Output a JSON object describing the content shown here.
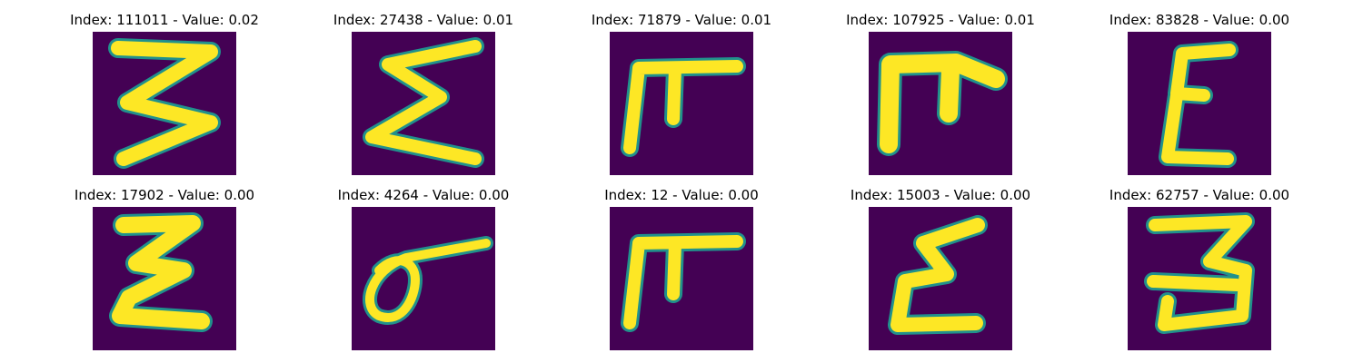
{
  "colors": {
    "background": "#440154",
    "edge": "#21918c",
    "stroke": "#fde725"
  },
  "panels": [
    {
      "title": "Index: 111011 - Value: 0.02",
      "glyph": "three-zigzag"
    },
    {
      "title": "Index: 27438 - Value: 0.01",
      "glyph": "sigma-zigzag"
    },
    {
      "title": "Index: 71879 - Value: 0.01",
      "glyph": "pi-hook"
    },
    {
      "title": "Index: 107925 - Value: 0.01",
      "glyph": "pi-hook-thick"
    },
    {
      "title": "Index: 83828 - Value: 0.00",
      "glyph": "epsilon"
    },
    {
      "title": "Index: 17902 - Value: 0.00",
      "glyph": "xi-thick"
    },
    {
      "title": "Index: 4264 - Value: 0.00",
      "glyph": "loop-stroke"
    },
    {
      "title": "Index: 12 - Value: 0.00",
      "glyph": "pi-hook"
    },
    {
      "title": "Index: 15003 - Value: 0.00",
      "glyph": "epsilon-wide"
    },
    {
      "title": "Index: 62757 - Value: 0.00",
      "glyph": "three-rounded"
    }
  ]
}
